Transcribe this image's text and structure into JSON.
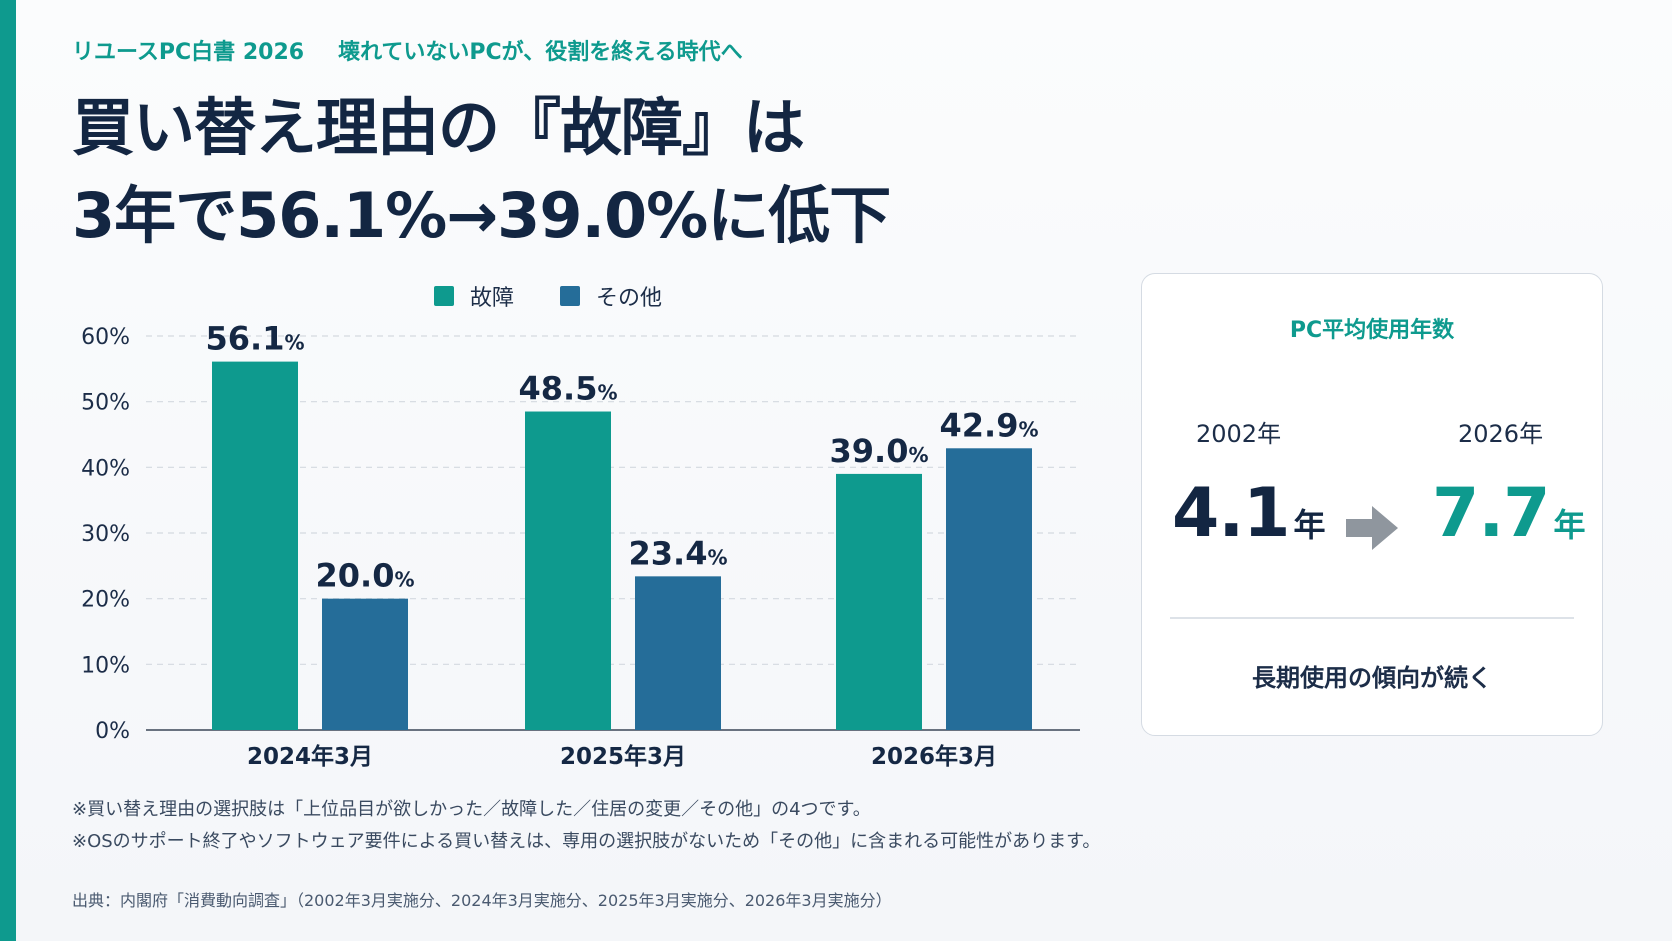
{
  "header": {
    "kicker_left": "リユースPC白書 2026",
    "kicker_right": "壊れていないPCが、役割を終える時代へ",
    "headline_line1": "買い替え理由の『故障』は",
    "headline_line2": "3年で56.1%→39.0%に低下"
  },
  "colors": {
    "accent": "#0e9a8e",
    "breakdown": "#0e9a8e",
    "other": "#256d99",
    "dark_text": "#132642"
  },
  "chart_data": {
    "type": "bar",
    "categories": [
      "2024年3月",
      "2025年3月",
      "2026年3月"
    ],
    "series": [
      {
        "name": "故障",
        "values": [
          56.1,
          48.5,
          39.0
        ]
      },
      {
        "name": "その他",
        "values": [
          20.0,
          23.4,
          42.9
        ]
      }
    ],
    "ylim": [
      0,
      60
    ],
    "yticks": [
      "0%",
      "10%",
      "20%",
      "30%",
      "40%",
      "50%",
      "60%"
    ],
    "value_suffix": "%",
    "grid": true,
    "legend_position": "top"
  },
  "kpi": {
    "title": "PC平均使用年数",
    "from_year": "2002年",
    "to_year": "2026年",
    "from_value": "4.1",
    "to_value": "7.7",
    "unit": "年",
    "note": "長期使用の傾向が続く"
  },
  "notes": {
    "note1": "※買い替え理由の選択肢は「上位品目が欲しかった／故障した／住居の変更／その他」の4つです。",
    "note2": "※OSのサポート終了やソフトウェア要件による買い替えは、専用の選択肢がないため「その他」に含まれる可能性があります。",
    "source": "出典：内閣府「消費動向調査」（2002年3月実施分、2024年3月実施分、2025年3月実施分、2026年3月実施分）"
  }
}
